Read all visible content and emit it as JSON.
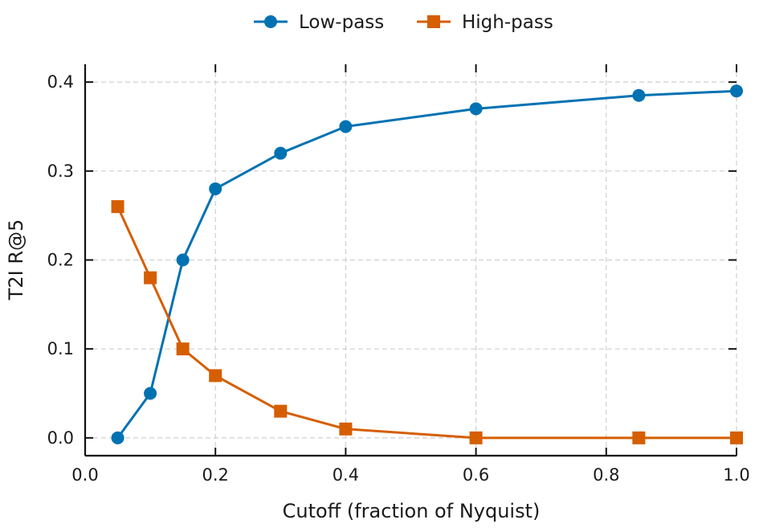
{
  "chart_data": {
    "type": "line",
    "title": "",
    "xlabel": "Cutoff (fraction of Nyquist)",
    "ylabel": "T2I R@5",
    "xlim": [
      0.0,
      1.0
    ],
    "ylim": [
      -0.02,
      0.42
    ],
    "xticks": [
      0.0,
      0.2,
      0.4,
      0.6,
      0.8,
      1.0
    ],
    "xtick_labels": [
      "0.0",
      "0.2",
      "0.4",
      "0.6",
      "0.8",
      "1.0"
    ],
    "yticks": [
      0.0,
      0.1,
      0.2,
      0.3,
      0.4
    ],
    "ytick_labels": [
      "0.0",
      "0.1",
      "0.2",
      "0.3",
      "0.4"
    ],
    "grid": true,
    "legend_position": "top-center",
    "series": [
      {
        "name": "Low-pass",
        "marker": "circle",
        "color": "#0072B2",
        "x": [
          0.05,
          0.1,
          0.15,
          0.2,
          0.3,
          0.4,
          0.6,
          0.85,
          1.0
        ],
        "values": [
          0.0,
          0.05,
          0.2,
          0.28,
          0.32,
          0.35,
          0.37,
          0.385,
          0.39
        ]
      },
      {
        "name": "High-pass",
        "marker": "square",
        "color": "#D55E00",
        "x": [
          0.05,
          0.1,
          0.15,
          0.2,
          0.3,
          0.4,
          0.6,
          0.85,
          1.0
        ],
        "values": [
          0.26,
          0.18,
          0.1,
          0.07,
          0.03,
          0.01,
          0.0,
          0.0,
          0.0
        ]
      }
    ]
  }
}
